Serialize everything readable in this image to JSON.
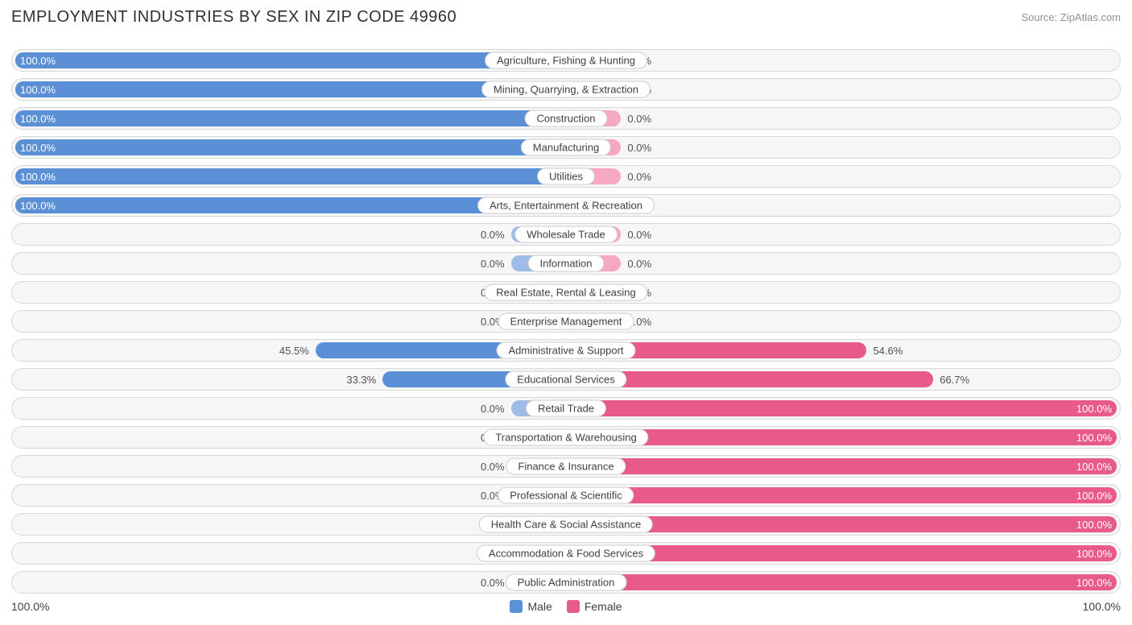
{
  "title": "EMPLOYMENT INDUSTRIES BY SEX IN ZIP CODE 49960",
  "source": "Source: ZipAtlas.com",
  "colors": {
    "male_full": "#5b8fd6",
    "male_light": "#9ebce6",
    "female_full": "#e85b89",
    "female_light": "#f6a7c1",
    "row_bg": "#f6f6f6",
    "row_border": "#d8d8d8",
    "text": "#404040"
  },
  "chart": {
    "type": "diverging-bar",
    "axis_left_label": "100.0%",
    "axis_right_label": "100.0%",
    "half_width_pct": 50,
    "stub_extent_pct": 10,
    "rows": [
      {
        "label": "Agriculture, Fishing & Hunting",
        "male": 100.0,
        "female": 0.0
      },
      {
        "label": "Mining, Quarrying, & Extraction",
        "male": 100.0,
        "female": 0.0
      },
      {
        "label": "Construction",
        "male": 100.0,
        "female": 0.0
      },
      {
        "label": "Manufacturing",
        "male": 100.0,
        "female": 0.0
      },
      {
        "label": "Utilities",
        "male": 100.0,
        "female": 0.0
      },
      {
        "label": "Arts, Entertainment & Recreation",
        "male": 100.0,
        "female": 0.0
      },
      {
        "label": "Wholesale Trade",
        "male": 0.0,
        "female": 0.0
      },
      {
        "label": "Information",
        "male": 0.0,
        "female": 0.0
      },
      {
        "label": "Real Estate, Rental & Leasing",
        "male": 0.0,
        "female": 0.0
      },
      {
        "label": "Enterprise Management",
        "male": 0.0,
        "female": 0.0
      },
      {
        "label": "Administrative & Support",
        "male": 45.5,
        "female": 54.6
      },
      {
        "label": "Educational Services",
        "male": 33.3,
        "female": 66.7
      },
      {
        "label": "Retail Trade",
        "male": 0.0,
        "female": 100.0
      },
      {
        "label": "Transportation & Warehousing",
        "male": 0.0,
        "female": 100.0
      },
      {
        "label": "Finance & Insurance",
        "male": 0.0,
        "female": 100.0
      },
      {
        "label": "Professional & Scientific",
        "male": 0.0,
        "female": 100.0
      },
      {
        "label": "Health Care & Social Assistance",
        "male": 0.0,
        "female": 100.0
      },
      {
        "label": "Accommodation & Food Services",
        "male": 0.0,
        "female": 100.0
      },
      {
        "label": "Public Administration",
        "male": 0.0,
        "female": 100.0
      }
    ]
  },
  "legend": {
    "male": "Male",
    "female": "Female"
  }
}
